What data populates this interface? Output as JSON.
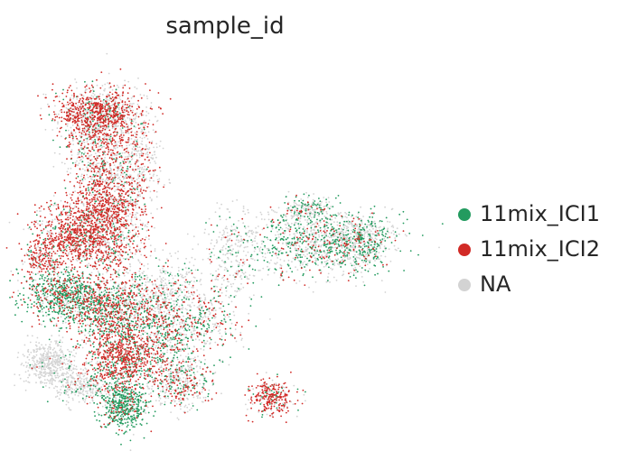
{
  "chart_data": {
    "type": "scatter",
    "title": "sample_id",
    "xlabel": "",
    "ylabel": "",
    "grid": false,
    "axes_visible": false,
    "legend_placement": "right",
    "series": [
      {
        "name": "11mix_ICI1",
        "color": "#239b5f"
      },
      {
        "name": "11mix_ICI2",
        "color": "#d12a26"
      },
      {
        "name": "NA",
        "color": "#d3d3d3"
      }
    ],
    "clusters": [
      {
        "x": 0.165,
        "y": 0.87,
        "sx": 0.055,
        "sy": 0.035,
        "n": 900,
        "mix": [
          0.08,
          0.6,
          0.32
        ]
      },
      {
        "x": 0.175,
        "y": 0.76,
        "sx": 0.045,
        "sy": 0.08,
        "n": 900,
        "mix": [
          0.1,
          0.35,
          0.55
        ]
      },
      {
        "x": 0.27,
        "y": 0.74,
        "sx": 0.035,
        "sy": 0.07,
        "n": 380,
        "mix": [
          0.05,
          0.3,
          0.65
        ]
      },
      {
        "x": 0.19,
        "y": 0.62,
        "sx": 0.04,
        "sy": 0.04,
        "n": 500,
        "mix": [
          0.05,
          0.6,
          0.35
        ]
      },
      {
        "x": 0.115,
        "y": 0.54,
        "sx": 0.055,
        "sy": 0.045,
        "n": 1000,
        "mix": [
          0.1,
          0.65,
          0.25
        ]
      },
      {
        "x": 0.02,
        "y": 0.48,
        "sx": 0.025,
        "sy": 0.025,
        "n": 200,
        "mix": [
          0.1,
          0.65,
          0.25
        ]
      },
      {
        "x": 0.23,
        "y": 0.52,
        "sx": 0.04,
        "sy": 0.06,
        "n": 400,
        "mix": [
          0.1,
          0.4,
          0.5
        ]
      },
      {
        "x": 0.07,
        "y": 0.38,
        "sx": 0.05,
        "sy": 0.035,
        "n": 700,
        "mix": [
          0.6,
          0.2,
          0.2
        ]
      },
      {
        "x": 0.2,
        "y": 0.34,
        "sx": 0.06,
        "sy": 0.045,
        "n": 1000,
        "mix": [
          0.4,
          0.35,
          0.25
        ]
      },
      {
        "x": 0.34,
        "y": 0.37,
        "sx": 0.06,
        "sy": 0.05,
        "n": 600,
        "mix": [
          0.15,
          0.15,
          0.7
        ]
      },
      {
        "x": 0.36,
        "y": 0.26,
        "sx": 0.04,
        "sy": 0.04,
        "n": 300,
        "mix": [
          0.4,
          0.2,
          0.4
        ]
      },
      {
        "x": 0.04,
        "y": 0.19,
        "sx": 0.035,
        "sy": 0.03,
        "n": 450,
        "mix": [
          0.05,
          0.02,
          0.93
        ]
      },
      {
        "x": 0.13,
        "y": 0.13,
        "sx": 0.035,
        "sy": 0.025,
        "n": 300,
        "mix": [
          0.1,
          0.05,
          0.85
        ]
      },
      {
        "x": 0.235,
        "y": 0.21,
        "sx": 0.05,
        "sy": 0.045,
        "n": 900,
        "mix": [
          0.2,
          0.6,
          0.2
        ]
      },
      {
        "x": 0.235,
        "y": 0.08,
        "sx": 0.03,
        "sy": 0.035,
        "n": 550,
        "mix": [
          0.7,
          0.1,
          0.2
        ]
      },
      {
        "x": 0.38,
        "y": 0.14,
        "sx": 0.045,
        "sy": 0.035,
        "n": 450,
        "mix": [
          0.2,
          0.25,
          0.55
        ]
      },
      {
        "x": 0.62,
        "y": 0.1,
        "sx": 0.03,
        "sy": 0.025,
        "n": 300,
        "mix": [
          0.1,
          0.65,
          0.25
        ]
      },
      {
        "x": 0.74,
        "y": 0.52,
        "sx": 0.09,
        "sy": 0.045,
        "n": 1000,
        "mix": [
          0.35,
          0.1,
          0.55
        ]
      },
      {
        "x": 0.86,
        "y": 0.52,
        "sx": 0.045,
        "sy": 0.035,
        "n": 450,
        "mix": [
          0.4,
          0.08,
          0.52
        ]
      },
      {
        "x": 0.71,
        "y": 0.61,
        "sx": 0.035,
        "sy": 0.02,
        "n": 220,
        "mix": [
          0.3,
          0.1,
          0.6
        ]
      },
      {
        "x": 0.52,
        "y": 0.48,
        "sx": 0.04,
        "sy": 0.06,
        "n": 280,
        "mix": [
          0.15,
          0.1,
          0.75
        ]
      },
      {
        "x": 0.46,
        "y": 0.3,
        "sx": 0.045,
        "sy": 0.05,
        "n": 280,
        "mix": [
          0.3,
          0.25,
          0.45
        ]
      }
    ]
  }
}
